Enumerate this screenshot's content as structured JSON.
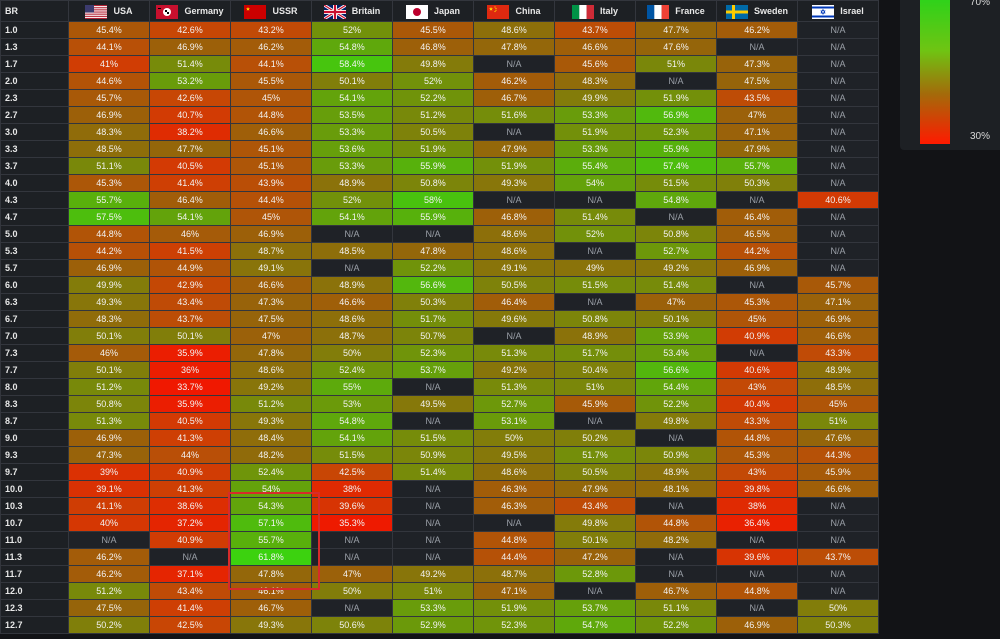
{
  "table": {
    "br_header": "BR",
    "nations": [
      {
        "name": "USA",
        "flag": "us-flag-icon"
      },
      {
        "name": "Germany",
        "flag": "germany-flag-icon"
      },
      {
        "name": "USSR",
        "flag": "ussr-flag-icon"
      },
      {
        "name": "Britain",
        "flag": "britain-flag-icon"
      },
      {
        "name": "Japan",
        "flag": "japan-flag-icon"
      },
      {
        "name": "China",
        "flag": "china-flag-icon"
      },
      {
        "name": "Italy",
        "flag": "italy-flag-icon"
      },
      {
        "name": "France",
        "flag": "france-flag-icon"
      },
      {
        "name": "Sweden",
        "flag": "sweden-flag-icon"
      },
      {
        "name": "Israel",
        "flag": "israel-flag-icon"
      }
    ],
    "rows": [
      {
        "br": "1.0",
        "cells": [
          "45.4%",
          "42.6%",
          "43.2%",
          "52%",
          "45.5%",
          "48.6%",
          "43.7%",
          "47.7%",
          "46.2%",
          "N/A"
        ]
      },
      {
        "br": "1.3",
        "cells": [
          "44.1%",
          "46.9%",
          "46.2%",
          "54.8%",
          "46.8%",
          "47.8%",
          "46.6%",
          "47.6%",
          "N/A",
          "N/A"
        ]
      },
      {
        "br": "1.7",
        "cells": [
          "41%",
          "51.4%",
          "44.1%",
          "58.4%",
          "49.8%",
          "N/A",
          "45.6%",
          "51%",
          "47.3%",
          "N/A"
        ]
      },
      {
        "br": "2.0",
        "cells": [
          "44.6%",
          "53.2%",
          "45.5%",
          "50.1%",
          "52%",
          "46.2%",
          "48.3%",
          "N/A",
          "47.5%",
          "N/A"
        ]
      },
      {
        "br": "2.3",
        "cells": [
          "45.7%",
          "42.6%",
          "45%",
          "54.1%",
          "52.2%",
          "46.7%",
          "49.9%",
          "51.9%",
          "43.5%",
          "N/A"
        ]
      },
      {
        "br": "2.7",
        "cells": [
          "46.9%",
          "40.7%",
          "44.8%",
          "53.5%",
          "51.2%",
          "51.6%",
          "53.3%",
          "56.9%",
          "47%",
          "N/A"
        ]
      },
      {
        "br": "3.0",
        "cells": [
          "48.3%",
          "38.2%",
          "46.6%",
          "53.3%",
          "50.5%",
          "N/A",
          "51.9%",
          "52.3%",
          "47.1%",
          "N/A"
        ]
      },
      {
        "br": "3.3",
        "cells": [
          "48.5%",
          "47.7%",
          "45.1%",
          "53.6%",
          "51.9%",
          "47.9%",
          "53.3%",
          "55.9%",
          "47.9%",
          "N/A"
        ]
      },
      {
        "br": "3.7",
        "cells": [
          "51.1%",
          "40.5%",
          "45.1%",
          "53.3%",
          "55.9%",
          "51.9%",
          "55.4%",
          "57.4%",
          "55.7%",
          "N/A"
        ]
      },
      {
        "br": "4.0",
        "cells": [
          "45.3%",
          "41.4%",
          "43.9%",
          "48.9%",
          "50.8%",
          "49.3%",
          "54%",
          "51.5%",
          "50.3%",
          "N/A"
        ]
      },
      {
        "br": "4.3",
        "cells": [
          "55.7%",
          "46.4%",
          "44.4%",
          "52%",
          "58%",
          "N/A",
          "N/A",
          "54.8%",
          "N/A",
          "40.6%"
        ]
      },
      {
        "br": "4.7",
        "cells": [
          "57.5%",
          "54.1%",
          "45%",
          "54.1%",
          "55.9%",
          "46.8%",
          "51.4%",
          "N/A",
          "46.4%",
          "N/A"
        ]
      },
      {
        "br": "5.0",
        "cells": [
          "44.8%",
          "46%",
          "46.9%",
          "N/A",
          "N/A",
          "48.6%",
          "52%",
          "50.8%",
          "46.5%",
          "N/A"
        ]
      },
      {
        "br": "5.3",
        "cells": [
          "44.2%",
          "41.5%",
          "48.7%",
          "48.5%",
          "47.8%",
          "48.6%",
          "N/A",
          "52.7%",
          "44.2%",
          "N/A"
        ]
      },
      {
        "br": "5.7",
        "cells": [
          "46.9%",
          "44.9%",
          "49.1%",
          "N/A",
          "52.2%",
          "49.1%",
          "49%",
          "49.2%",
          "46.9%",
          "N/A"
        ]
      },
      {
        "br": "6.0",
        "cells": [
          "49.9%",
          "42.9%",
          "46.6%",
          "48.9%",
          "56.6%",
          "50.5%",
          "51.5%",
          "51.4%",
          "N/A",
          "45.7%"
        ]
      },
      {
        "br": "6.3",
        "cells": [
          "49.3%",
          "43.4%",
          "47.3%",
          "46.6%",
          "50.3%",
          "46.4%",
          "N/A",
          "47%",
          "45.3%",
          "47.1%"
        ]
      },
      {
        "br": "6.7",
        "cells": [
          "48.3%",
          "43.7%",
          "47.5%",
          "48.6%",
          "51.7%",
          "49.6%",
          "50.8%",
          "50.1%",
          "45%",
          "46.9%"
        ]
      },
      {
        "br": "7.0",
        "cells": [
          "50.1%",
          "50.1%",
          "47%",
          "48.7%",
          "50.7%",
          "N/A",
          "48.9%",
          "53.9%",
          "40.9%",
          "46.6%"
        ]
      },
      {
        "br": "7.3",
        "cells": [
          "46%",
          "35.9%",
          "47.8%",
          "50%",
          "52.3%",
          "51.3%",
          "51.7%",
          "53.4%",
          "N/A",
          "43.3%"
        ]
      },
      {
        "br": "7.7",
        "cells": [
          "50.1%",
          "36%",
          "48.6%",
          "52.4%",
          "53.7%",
          "49.2%",
          "50.4%",
          "56.6%",
          "40.6%",
          "48.9%"
        ]
      },
      {
        "br": "8.0",
        "cells": [
          "51.2%",
          "33.7%",
          "49.2%",
          "55%",
          "N/A",
          "51.3%",
          "51%",
          "54.4%",
          "43%",
          "48.5%"
        ]
      },
      {
        "br": "8.3",
        "cells": [
          "50.8%",
          "35.9%",
          "51.2%",
          "53%",
          "49.5%",
          "52.7%",
          "45.9%",
          "52.2%",
          "40.4%",
          "45%"
        ]
      },
      {
        "br": "8.7",
        "cells": [
          "51.3%",
          "40.5%",
          "49.3%",
          "54.8%",
          "N/A",
          "53.1%",
          "N/A",
          "49.8%",
          "43.3%",
          "51%"
        ]
      },
      {
        "br": "9.0",
        "cells": [
          "46.9%",
          "41.3%",
          "48.4%",
          "54.1%",
          "51.5%",
          "50%",
          "50.2%",
          "N/A",
          "44.8%",
          "47.6%"
        ]
      },
      {
        "br": "9.3",
        "cells": [
          "47.3%",
          "44%",
          "48.2%",
          "51.5%",
          "50.9%",
          "49.5%",
          "51.7%",
          "50.9%",
          "45.3%",
          "44.3%"
        ]
      },
      {
        "br": "9.7",
        "cells": [
          "39%",
          "40.9%",
          "52.4%",
          "42.5%",
          "51.4%",
          "48.6%",
          "50.5%",
          "48.9%",
          "43%",
          "45.9%"
        ]
      },
      {
        "br": "10.0",
        "cells": [
          "39.1%",
          "41.3%",
          "54%",
          "38%",
          "N/A",
          "46.3%",
          "47.9%",
          "48.1%",
          "39.8%",
          "46.6%"
        ]
      },
      {
        "br": "10.3",
        "cells": [
          "41.1%",
          "38.6%",
          "54.3%",
          "39.6%",
          "N/A",
          "46.3%",
          "43.4%",
          "N/A",
          "38%",
          "N/A"
        ]
      },
      {
        "br": "10.7",
        "cells": [
          "40%",
          "37.2%",
          "57.1%",
          "35.3%",
          "N/A",
          "N/A",
          "49.8%",
          "44.8%",
          "36.4%",
          "N/A"
        ]
      },
      {
        "br": "11.0",
        "cells": [
          "N/A",
          "40.9%",
          "55.7%",
          "N/A",
          "N/A",
          "44.8%",
          "50.1%",
          "48.2%",
          "N/A",
          "N/A"
        ]
      },
      {
        "br": "11.3",
        "cells": [
          "46.2%",
          "N/A",
          "61.8%",
          "N/A",
          "N/A",
          "44.4%",
          "47.2%",
          "N/A",
          "39.6%",
          "43.7%"
        ]
      },
      {
        "br": "11.7",
        "cells": [
          "46.2%",
          "37.1%",
          "47.8%",
          "47%",
          "49.2%",
          "48.7%",
          "52.8%",
          "N/A",
          "N/A",
          "N/A"
        ]
      },
      {
        "br": "12.0",
        "cells": [
          "51.2%",
          "43.4%",
          "46.1%",
          "50%",
          "51%",
          "47.1%",
          "N/A",
          "46.7%",
          "44.8%",
          "N/A"
        ]
      },
      {
        "br": "12.3",
        "cells": [
          "47.5%",
          "41.4%",
          "46.7%",
          "N/A",
          "53.3%",
          "51.9%",
          "53.7%",
          "51.1%",
          "N/A",
          "50%"
        ]
      },
      {
        "br": "12.7",
        "cells": [
          "50.2%",
          "42.5%",
          "49.3%",
          "50.6%",
          "52.9%",
          "52.3%",
          "54.7%",
          "52.2%",
          "46.9%",
          "50.3%"
        ]
      }
    ]
  },
  "legend": {
    "max_label": "70%",
    "min_label": "30%"
  },
  "colors": {
    "low": "#ff1a00",
    "mid": "#a36b0a",
    "high": "#2fd21a",
    "na": "#1f2227",
    "highlight": "#d62b2b"
  }
}
